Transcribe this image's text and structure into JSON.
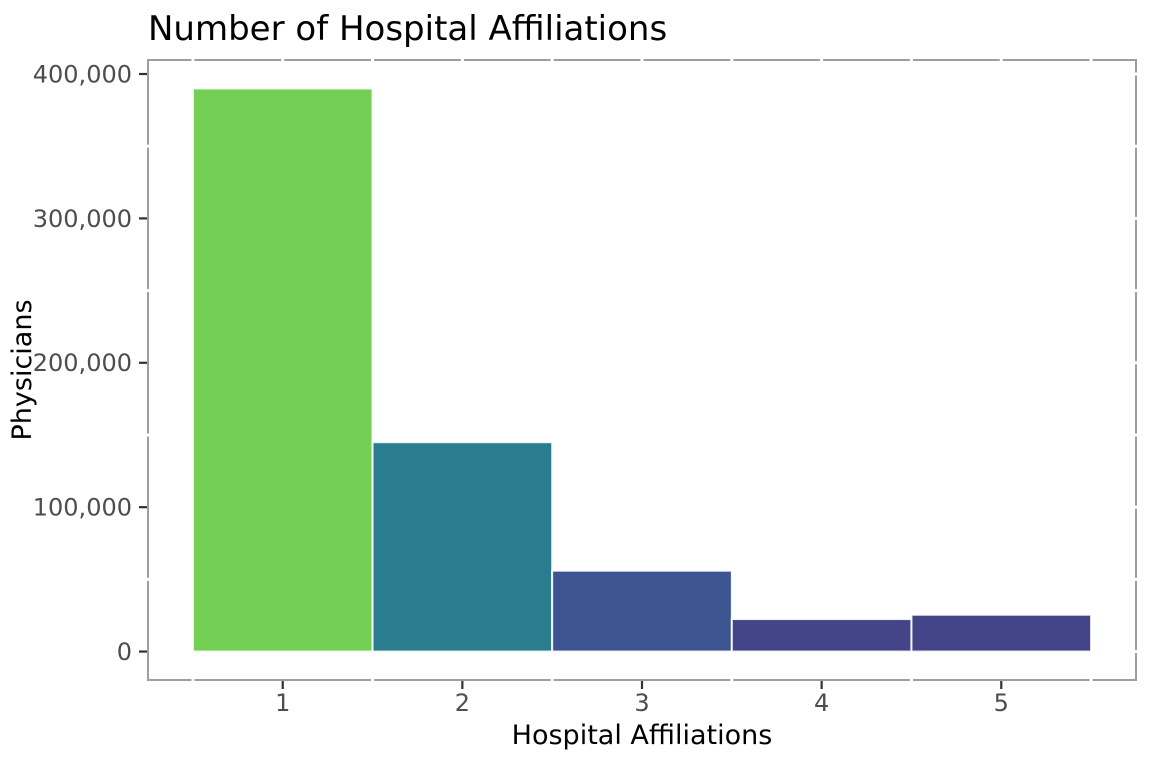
{
  "chart_data": {
    "type": "bar",
    "title": "Number of Hospital Affiliations",
    "xlabel": "Hospital Affiliations",
    "ylabel": "Physicians",
    "categories": [
      1,
      2,
      3,
      4,
      5
    ],
    "values": [
      390000,
      145000,
      56000,
      22500,
      25500
    ],
    "bar_colors": [
      "#74d055",
      "#2a7d8e",
      "#3c5590",
      "#444589",
      "#444589"
    ],
    "x_tick_labels": [
      "1",
      "2",
      "3",
      "4",
      "5"
    ],
    "y_tick_labels": [
      "0",
      "100,000",
      "200,000",
      "300,000",
      "400,000"
    ],
    "y_tick_values": [
      0,
      100000,
      200000,
      300000,
      400000
    ],
    "ylim": [
      0,
      400000
    ],
    "xlim_expanded": [
      0.25,
      5.75
    ],
    "ylim_expanded": [
      -19700,
      409700
    ],
    "bar_width": 1.0,
    "legend": "none",
    "grid": "off",
    "style": {
      "background": "#ffffff",
      "panel_border": "#9e9e9e",
      "tick_mark": "#333333",
      "tick_label": "#4d4d4d",
      "title_color": "#000000",
      "bar_stroke": "#ffffff"
    }
  }
}
